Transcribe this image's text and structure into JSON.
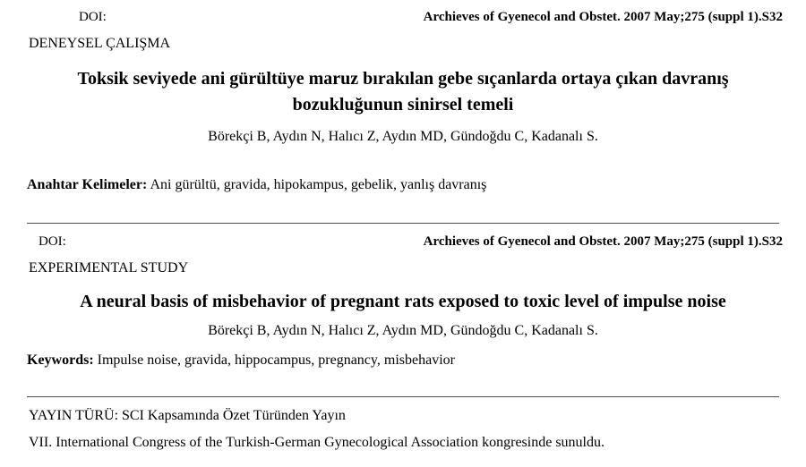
{
  "colors": {
    "background": "#ffffff",
    "text": "#000000",
    "divider": "#4f4f4f"
  },
  "sections": [
    {
      "doi_label": "DOI:",
      "journal_ref": "Archieves of Gyenecol and Obstet. 2007 May;275 (suppl 1).S32",
      "study_type": "DENEYSEL ÇALIŞMA",
      "title": "Toksik seviyede ani gürültüye maruz bırakılan gebe sıçanlarda ortaya çıkan davranış bozukluğunun sinirsel temeli",
      "title_lines": [
        "Toksik seviyede ani gürültüye maruz bırakılan gebe sıçanlarda ortaya çıkan davranış",
        "bozukluğunun sinirsel temeli"
      ],
      "authors": "Börekçi B, Aydın N, Halıcı Z, Aydın MD, Gündoğdu C, Kadanalı S.",
      "keywords_label": "Anahtar Kelimeler:",
      "keywords": "Ani gürültü, gravida, hipokampus, gebelik, yanlış davranış"
    },
    {
      "doi_label": "DOI:",
      "journal_ref": "Archieves of Gyenecol and Obstet. 2007 May;275 (suppl 1).S32",
      "study_type": "EXPERIMENTAL STUDY",
      "title": "A neural basis of misbehavior of pregnant rats exposed to toxic level of impulse noise",
      "title_lines": [
        "A neural basis of misbehavior of pregnant rats exposed to toxic level of impulse noise"
      ],
      "authors": "Börekçi B, Aydın N, Halıcı Z, Aydın MD, Gündoğdu C, Kadanalı S.",
      "keywords_label": "Keywords:",
      "keywords": "Impulse noise, gravida, hippocampus, pregnancy, misbehavior"
    }
  ],
  "footer": {
    "publication_type": "YAYIN TÜRÜ: SCI Kapsamında Özet Türünden Yayın",
    "presented_at": "VII. International Congress of the Turkish-German Gynecological Association kongresinde sunuldu."
  }
}
